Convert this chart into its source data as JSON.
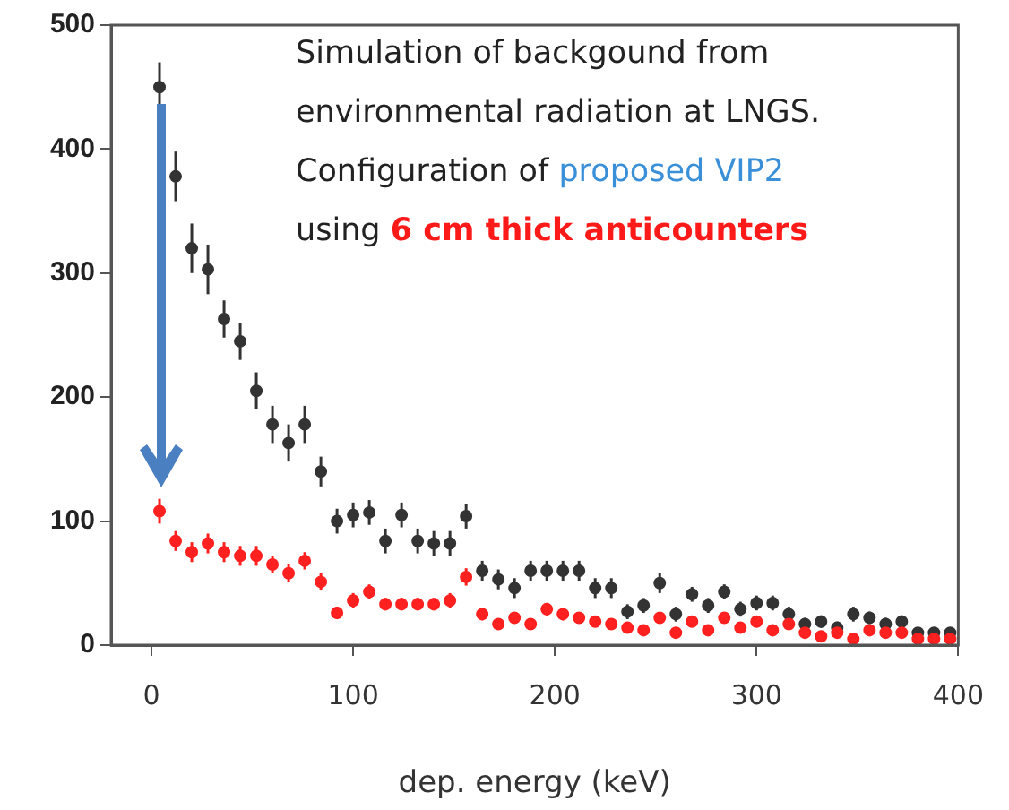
{
  "chart_data": {
    "type": "scatter",
    "xlabel": "dep. energy (keV)",
    "x": [
      4,
      12,
      20,
      28,
      36,
      44,
      52,
      60,
      68,
      76,
      84,
      92,
      100,
      108,
      116,
      124,
      132,
      140,
      148,
      156,
      164,
      172,
      180,
      188,
      196,
      204,
      212,
      220,
      228,
      236,
      244,
      252,
      260,
      268,
      276,
      284,
      292,
      300,
      308,
      316,
      324,
      332,
      340,
      348,
      356,
      364,
      372,
      380,
      388,
      396
    ],
    "series": [
      {
        "color": "#333333",
        "values": [
          450,
          378,
          320,
          303,
          263,
          245,
          205,
          178,
          163,
          178,
          140,
          100,
          105,
          107,
          84,
          105,
          84,
          82,
          82,
          104,
          60,
          53,
          46,
          60,
          60,
          60,
          60,
          46,
          46,
          27,
          32,
          50,
          25,
          41,
          32,
          43,
          29,
          34,
          34,
          25,
          17,
          19,
          14,
          25,
          22,
          17,
          19,
          10,
          10,
          10
        ],
        "errors": [
          20,
          20,
          20,
          20,
          15,
          15,
          15,
          15,
          15,
          15,
          12,
          10,
          10,
          10,
          10,
          10,
          10,
          10,
          10,
          10,
          8,
          8,
          8,
          8,
          8,
          8,
          8,
          8,
          8,
          6,
          6,
          8,
          6,
          6,
          6,
          6,
          6,
          6,
          6,
          6,
          5,
          5,
          5,
          6,
          5,
          5,
          5,
          4,
          4,
          4
        ]
      },
      {
        "color": "#ff2020",
        "values": [
          108,
          84,
          75,
          82,
          75,
          72,
          72,
          65,
          58,
          68,
          51,
          26,
          36,
          43,
          33,
          33,
          33,
          33,
          36,
          55,
          25,
          17,
          22,
          17,
          29,
          25,
          22,
          19,
          17,
          14,
          12,
          22,
          10,
          19,
          12,
          22,
          14,
          19,
          12,
          17,
          10,
          7,
          10,
          5,
          12,
          10,
          10,
          5,
          5,
          5
        ],
        "errors": [
          10,
          8,
          8,
          8,
          8,
          8,
          8,
          7,
          7,
          7,
          7,
          5,
          6,
          6,
          5,
          5,
          5,
          5,
          6,
          7,
          5,
          4,
          4,
          4,
          5,
          5,
          4,
          4,
          4,
          4,
          3,
          4,
          3,
          4,
          3,
          4,
          3,
          4,
          3,
          4,
          3,
          3,
          3,
          2,
          3,
          3,
          3,
          2,
          2,
          2
        ]
      }
    ],
    "xlim": [
      -20,
      400
    ],
    "xticks": [
      0,
      100,
      200,
      300,
      400
    ],
    "ylim": [
      0,
      500
    ],
    "yticks": [
      0,
      100,
      200,
      300,
      400,
      500
    ],
    "grid": false,
    "legend": false,
    "marker": "circle",
    "annotations": [
      "Simulation of backgound from",
      "environmental radiation at LNGS.",
      "Configuration of",
      "proposed  VIP2",
      "using",
      "6 cm thick anticounters"
    ]
  }
}
